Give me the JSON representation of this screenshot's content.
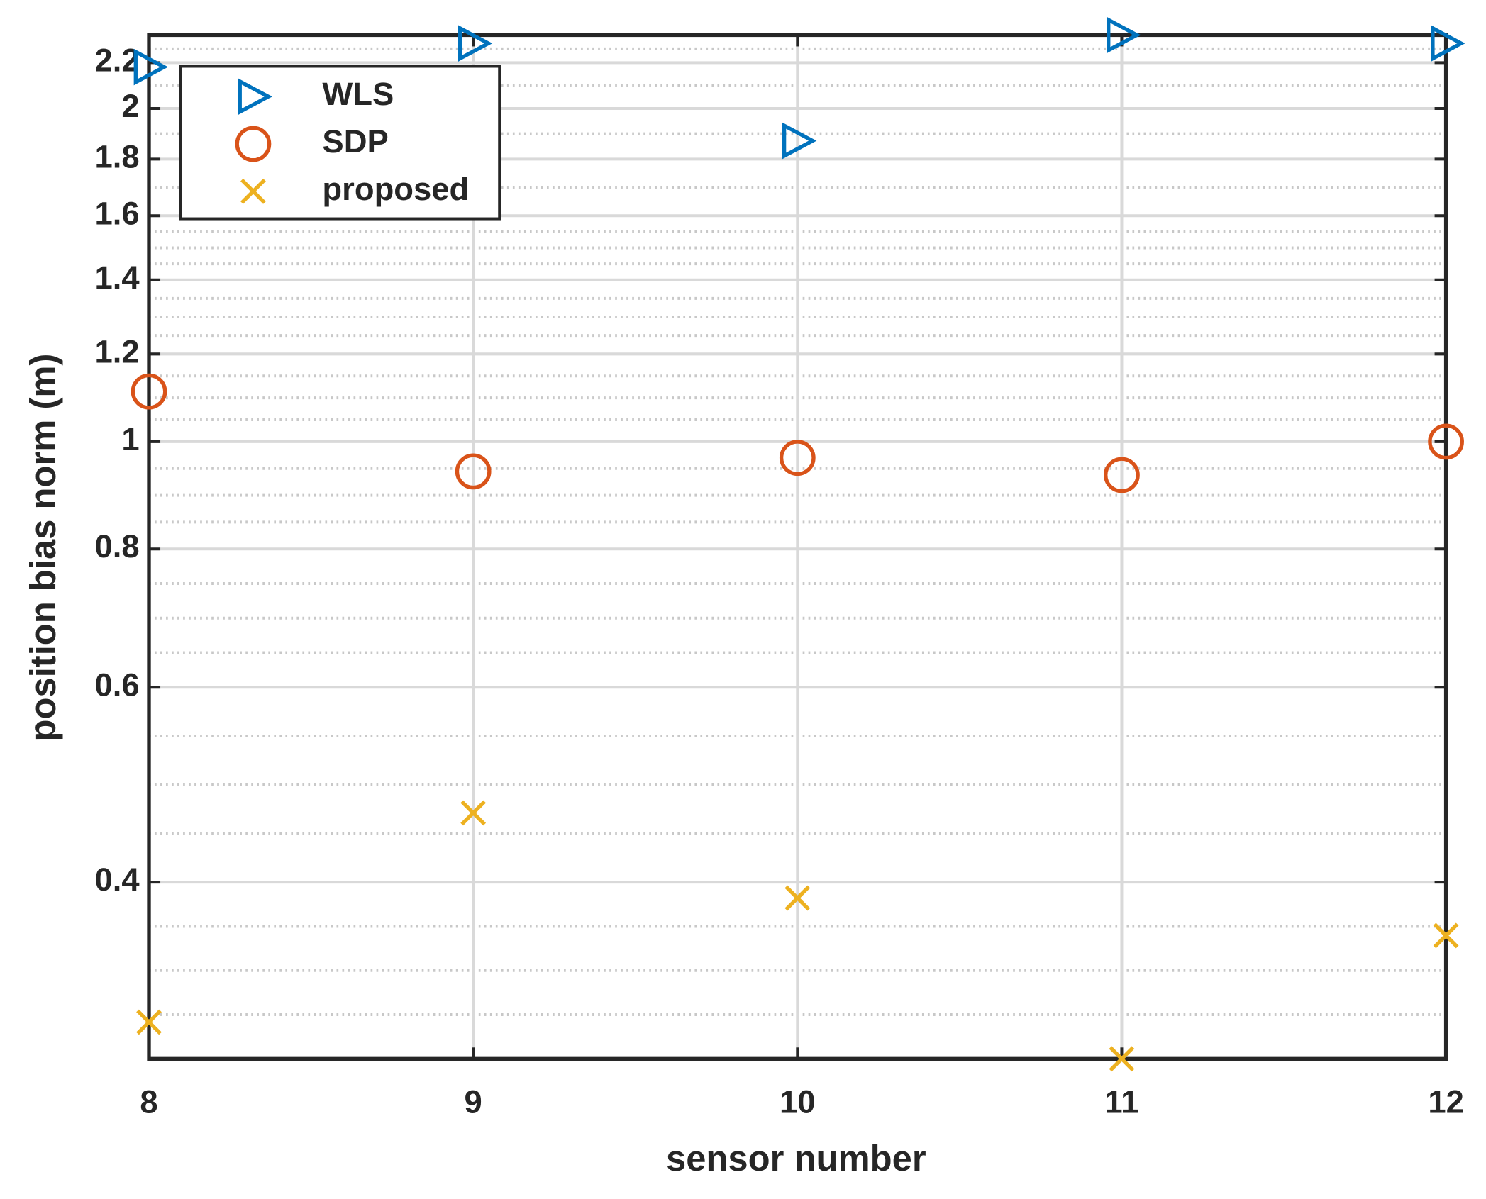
{
  "chart_data": {
    "type": "scatter",
    "xlabel": "sensor number",
    "ylabel": "position bias norm (m)",
    "x": [
      8,
      9,
      10,
      11,
      12
    ],
    "xlim": [
      8,
      12
    ],
    "xticks": [
      8,
      9,
      10,
      11,
      12
    ],
    "ylim": [
      0.277,
      2.33
    ],
    "yticks": [
      0.4,
      0.6,
      0.8,
      1,
      1.2,
      1.4,
      1.6,
      1.8,
      2,
      2.2
    ],
    "yscale": "log",
    "grid": true,
    "minor_grid": true,
    "legend_loc": "upper left",
    "series": [
      {
        "name": "WLS",
        "color": "#0072bd",
        "marker": "triangle-right",
        "values": [
          2.18,
          2.29,
          1.87,
          2.33,
          2.29
        ]
      },
      {
        "name": "SDP",
        "color": "#d95319",
        "marker": "circle",
        "values": [
          1.11,
          0.94,
          0.967,
          0.933,
          1.0
        ]
      },
      {
        "name": "proposed",
        "color": "#edb120",
        "marker": "x",
        "values": [
          0.299,
          0.462,
          0.387,
          0.277,
          0.358
        ]
      }
    ]
  }
}
